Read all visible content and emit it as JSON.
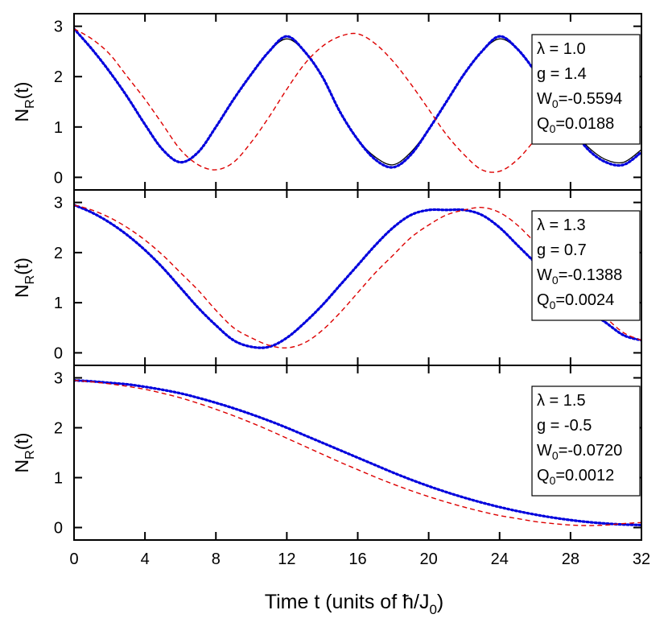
{
  "figure": {
    "xlabel": "Time t (units of ħ/J",
    "xlabel_sub": "0",
    "xlabel_close": ")",
    "ylabel_main": "N",
    "ylabel_sub": "R",
    "ylabel_tail": "(t)"
  },
  "chart_data": [
    {
      "type": "line",
      "xlim": [
        0,
        32
      ],
      "ylim": [
        -0.25,
        3.25
      ],
      "xticks": [
        "0",
        "4",
        "8",
        "12",
        "16",
        "20",
        "24",
        "28",
        "32"
      ],
      "yticks": [
        "0",
        "1",
        "2",
        "3"
      ],
      "legend_position": "top-right",
      "legend": [
        {
          "label": "λ = 1.0"
        },
        {
          "label": "g = 1.4"
        },
        {
          "label": "W",
          "sub": "0",
          "value": "=-0.5594"
        },
        {
          "label": "Q",
          "sub": "0",
          "value": "=0.0188"
        }
      ],
      "series": [
        {
          "color": "#000000",
          "style": "solid",
          "x": [
            0,
            1,
            2,
            3,
            4,
            5,
            6,
            7,
            8,
            9,
            10,
            11,
            12,
            13,
            14,
            15,
            16,
            17,
            18,
            19,
            20,
            21,
            22,
            23,
            24,
            25,
            26,
            27,
            28,
            29,
            30,
            31,
            32
          ],
          "y": [
            2.95,
            2.55,
            2.1,
            1.6,
            1.05,
            0.55,
            0.3,
            0.5,
            1.0,
            1.55,
            2.05,
            2.5,
            2.75,
            2.5,
            2.0,
            1.3,
            0.75,
            0.4,
            0.25,
            0.5,
            0.95,
            1.5,
            2.05,
            2.5,
            2.75,
            2.55,
            2.1,
            1.55,
            1.0,
            0.6,
            0.35,
            0.3,
            0.55
          ]
        },
        {
          "color": "#0000dd",
          "style": "dotted",
          "x": [
            0,
            1,
            2,
            3,
            4,
            5,
            6,
            7,
            8,
            9,
            10,
            11,
            12,
            13,
            14,
            15,
            16,
            17,
            18,
            19,
            20,
            21,
            22,
            23,
            24,
            25,
            26,
            27,
            28,
            29,
            30,
            31,
            32
          ],
          "y": [
            2.95,
            2.55,
            2.1,
            1.6,
            1.05,
            0.55,
            0.3,
            0.5,
            1.0,
            1.55,
            2.05,
            2.5,
            2.8,
            2.5,
            2.0,
            1.3,
            0.75,
            0.35,
            0.2,
            0.45,
            0.95,
            1.5,
            2.05,
            2.5,
            2.8,
            2.55,
            2.1,
            1.55,
            1.0,
            0.55,
            0.3,
            0.25,
            0.5
          ]
        },
        {
          "color": "#dd0000",
          "style": "dashed",
          "x": [
            0,
            1,
            2,
            3,
            4,
            5,
            6,
            7,
            8,
            9,
            10,
            11,
            12,
            13,
            14,
            15,
            16,
            17,
            18,
            19,
            20,
            21,
            22,
            23,
            24,
            25,
            26,
            27,
            28,
            29,
            30,
            31,
            32
          ],
          "y": [
            2.95,
            2.75,
            2.45,
            2.0,
            1.55,
            1.05,
            0.55,
            0.25,
            0.15,
            0.3,
            0.7,
            1.2,
            1.75,
            2.25,
            2.6,
            2.8,
            2.85,
            2.65,
            2.3,
            1.85,
            1.35,
            0.85,
            0.45,
            0.15,
            0.12,
            0.35,
            0.75,
            1.2,
            1.65,
            2.1,
            2.45,
            2.7,
            2.8
          ]
        }
      ]
    },
    {
      "type": "line",
      "xlim": [
        0,
        32
      ],
      "ylim": [
        -0.25,
        3.25
      ],
      "xticks": [
        "0",
        "4",
        "8",
        "12",
        "16",
        "20",
        "24",
        "28",
        "32"
      ],
      "yticks": [
        "0",
        "1",
        "2",
        "3"
      ],
      "legend_position": "top-right",
      "legend": [
        {
          "label": "λ = 1.3"
        },
        {
          "label": "g = 0.7"
        },
        {
          "label": "W",
          "sub": "0",
          "value": "=-0.1388"
        },
        {
          "label": "Q",
          "sub": "0",
          "value": "=0.0024"
        }
      ],
      "series": [
        {
          "color": "#000000",
          "style": "solid",
          "x": [
            0,
            1,
            2,
            3,
            4,
            5,
            6,
            7,
            8,
            9,
            10,
            11,
            12,
            13,
            14,
            15,
            16,
            17,
            18,
            19,
            20,
            21,
            22,
            23,
            24,
            25,
            26,
            27,
            28,
            29,
            30,
            31,
            32
          ],
          "y": [
            2.95,
            2.8,
            2.6,
            2.35,
            2.05,
            1.7,
            1.3,
            0.9,
            0.55,
            0.25,
            0.12,
            0.12,
            0.3,
            0.6,
            0.95,
            1.35,
            1.75,
            2.15,
            2.5,
            2.75,
            2.85,
            2.85,
            2.85,
            2.75,
            2.5,
            2.15,
            1.8,
            1.45,
            1.15,
            0.85,
            0.6,
            0.35,
            0.25
          ]
        },
        {
          "color": "#0000dd",
          "style": "dotted",
          "x": [
            0,
            1,
            2,
            3,
            4,
            5,
            6,
            7,
            8,
            9,
            10,
            11,
            12,
            13,
            14,
            15,
            16,
            17,
            18,
            19,
            20,
            21,
            22,
            23,
            24,
            25,
            26,
            27,
            28,
            29,
            30,
            31,
            32
          ],
          "y": [
            2.95,
            2.8,
            2.6,
            2.35,
            2.05,
            1.7,
            1.3,
            0.9,
            0.55,
            0.25,
            0.12,
            0.12,
            0.3,
            0.6,
            0.95,
            1.35,
            1.75,
            2.15,
            2.5,
            2.75,
            2.85,
            2.85,
            2.85,
            2.75,
            2.5,
            2.15,
            1.8,
            1.45,
            1.15,
            0.85,
            0.6,
            0.35,
            0.25
          ]
        },
        {
          "color": "#dd0000",
          "style": "dashed",
          "x": [
            0,
            1,
            2,
            3,
            4,
            5,
            6,
            7,
            8,
            9,
            10,
            11,
            12,
            13,
            14,
            15,
            16,
            17,
            18,
            19,
            20,
            21,
            22,
            23,
            24,
            25,
            26,
            27,
            28,
            29,
            30,
            31,
            32
          ],
          "y": [
            2.95,
            2.85,
            2.7,
            2.5,
            2.25,
            1.95,
            1.6,
            1.25,
            0.85,
            0.5,
            0.3,
            0.15,
            0.1,
            0.2,
            0.45,
            0.8,
            1.2,
            1.6,
            1.95,
            2.3,
            2.55,
            2.75,
            2.85,
            2.9,
            2.8,
            2.55,
            2.2,
            1.85,
            1.45,
            1.05,
            0.7,
            0.4,
            0.25
          ]
        }
      ]
    },
    {
      "type": "line",
      "xlim": [
        0,
        32
      ],
      "ylim": [
        -0.25,
        3.25
      ],
      "xticks": [
        "0",
        "4",
        "8",
        "12",
        "16",
        "20",
        "24",
        "28",
        "32"
      ],
      "yticks": [
        "0",
        "1",
        "2",
        "3"
      ],
      "legend_position": "top-right",
      "legend": [
        {
          "label": "λ = 1.5"
        },
        {
          "label": "g = -0.5"
        },
        {
          "label": "W",
          "sub": "0",
          "value": "=-0.0720"
        },
        {
          "label": "Q",
          "sub": "0",
          "value": "=0.0012"
        }
      ],
      "series": [
        {
          "color": "#000000",
          "style": "solid",
          "x": [
            0,
            1,
            2,
            3,
            4,
            5,
            6,
            7,
            8,
            9,
            10,
            11,
            12,
            13,
            14,
            15,
            16,
            17,
            18,
            19,
            20,
            21,
            22,
            23,
            24,
            25,
            26,
            27,
            28,
            29,
            30,
            31,
            32
          ],
          "y": [
            2.95,
            2.93,
            2.9,
            2.87,
            2.82,
            2.76,
            2.69,
            2.6,
            2.5,
            2.39,
            2.27,
            2.14,
            2.0,
            1.85,
            1.7,
            1.55,
            1.4,
            1.25,
            1.1,
            0.96,
            0.83,
            0.71,
            0.6,
            0.5,
            0.41,
            0.33,
            0.26,
            0.2,
            0.15,
            0.11,
            0.08,
            0.06,
            0.05
          ]
        },
        {
          "color": "#0000dd",
          "style": "dotted",
          "x": [
            0,
            1,
            2,
            3,
            4,
            5,
            6,
            7,
            8,
            9,
            10,
            11,
            12,
            13,
            14,
            15,
            16,
            17,
            18,
            19,
            20,
            21,
            22,
            23,
            24,
            25,
            26,
            27,
            28,
            29,
            30,
            31,
            32
          ],
          "y": [
            2.95,
            2.93,
            2.9,
            2.87,
            2.82,
            2.76,
            2.69,
            2.6,
            2.5,
            2.39,
            2.27,
            2.14,
            2.0,
            1.85,
            1.7,
            1.55,
            1.4,
            1.25,
            1.1,
            0.96,
            0.83,
            0.71,
            0.6,
            0.5,
            0.41,
            0.33,
            0.26,
            0.2,
            0.15,
            0.11,
            0.08,
            0.06,
            0.05
          ]
        },
        {
          "color": "#dd0000",
          "style": "dashed",
          "x": [
            0,
            1,
            2,
            3,
            4,
            5,
            6,
            7,
            8,
            9,
            10,
            11,
            12,
            13,
            14,
            15,
            16,
            17,
            18,
            19,
            20,
            21,
            22,
            23,
            24,
            25,
            26,
            27,
            28,
            29,
            30,
            31,
            32
          ],
          "y": [
            2.95,
            2.92,
            2.88,
            2.83,
            2.77,
            2.69,
            2.6,
            2.49,
            2.37,
            2.24,
            2.1,
            1.95,
            1.79,
            1.63,
            1.47,
            1.31,
            1.16,
            1.01,
            0.87,
            0.74,
            0.62,
            0.51,
            0.41,
            0.32,
            0.24,
            0.18,
            0.12,
            0.08,
            0.05,
            0.04,
            0.05,
            0.08,
            0.1
          ]
        }
      ]
    }
  ]
}
